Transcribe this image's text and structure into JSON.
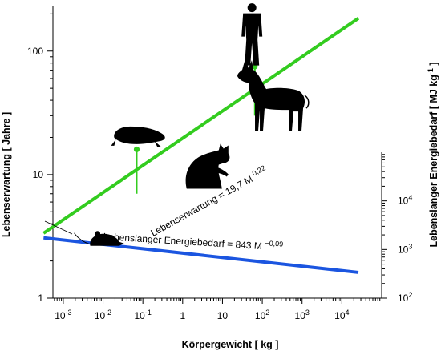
{
  "chart_data": {
    "type": "line",
    "title": "",
    "xlabel": "Körpergewicht [ kg ]",
    "ylabel": "Lebenserwartung [ Jahre ]",
    "y2label": "Lebenslanger Energiebedarf [ MJ kg-1 ]",
    "x_scale": "log",
    "y_scale": "log",
    "y2_scale": "log",
    "xlim": [
      0.00055,
      100000
    ],
    "ylim": [
      1,
      230
    ],
    "y2lim": [
      100,
      100000
    ],
    "x_ticks": [
      {
        "value": 0.001,
        "base": "10",
        "exp": "-3"
      },
      {
        "value": 0.01,
        "base": "10",
        "exp": "-2"
      },
      {
        "value": 0.1,
        "base": "10",
        "exp": "-1"
      },
      {
        "value": 1,
        "base": "1",
        "exp": ""
      },
      {
        "value": 10,
        "base": "10",
        "exp": ""
      },
      {
        "value": 100,
        "base": "10",
        "exp": "2"
      },
      {
        "value": 1000,
        "base": "10",
        "exp": "3"
      },
      {
        "value": 10000,
        "base": "10",
        "exp": "4"
      }
    ],
    "y_ticks": [
      {
        "value": 1,
        "label": "1"
      },
      {
        "value": 10,
        "label": "10"
      },
      {
        "value": 100,
        "label": "100"
      }
    ],
    "y2_ticks": [
      {
        "value": 100,
        "base": "10",
        "exp": "2"
      },
      {
        "value": 1000,
        "base": "10",
        "exp": "3"
      },
      {
        "value": 10000,
        "base": "10",
        "exp": "4"
      }
    ],
    "series": [
      {
        "name": "Lebenserwartung = 19,7 M 0,22",
        "label_text": "Lebenserwartung = 19,7 M",
        "label_exp": "0,22",
        "axis": "left",
        "color": "#33cc1f",
        "coefficient": 19.7,
        "exponent": 0.22,
        "x_range": [
          0.00032,
          26000
        ]
      },
      {
        "name": "Lebenslanger Energiebedarf = 843 M -0,09",
        "label_text": "Lebenslanger Energiebedarf = 843 M",
        "label_exp": "−0,09",
        "axis": "right",
        "color": "#1b55e0",
        "coefficient": 843,
        "exponent": -0.09,
        "x_range": [
          0.00032,
          26000
        ]
      }
    ],
    "outliers": [
      {
        "name": "naked-mole-rat",
        "x": 0.07,
        "y_top": 16,
        "y_bottom": 7
      },
      {
        "name": "human",
        "x": 65,
        "y_top": 75,
        "y_bottom": 30
      }
    ],
    "outlier_color": "#33cc1f",
    "silhouettes": [
      {
        "name": "mouse",
        "x": 0.011,
        "y": 2.9
      },
      {
        "name": "naked-mole-rat",
        "x": 0.07,
        "y": 20.5
      },
      {
        "name": "cat",
        "x": 3.5,
        "y": 11
      },
      {
        "name": "human",
        "x": 55,
        "y": 135
      },
      {
        "name": "donkey",
        "x": 200,
        "y": 40
      }
    ],
    "grid": false,
    "legend": "none"
  }
}
